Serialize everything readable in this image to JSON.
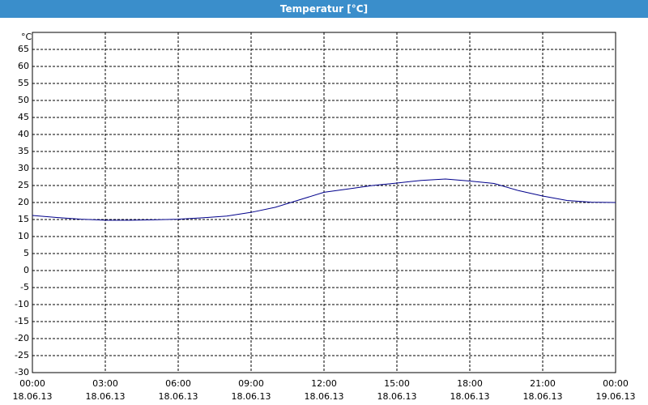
{
  "chart_data": {
    "type": "line",
    "title": "Temperatur [°C]",
    "y_unit": "°C",
    "x": [
      0,
      1,
      2,
      3,
      4,
      5,
      6,
      7,
      8,
      9,
      10,
      11,
      12,
      13,
      14,
      15,
      16,
      17,
      18,
      19,
      20,
      21,
      22,
      23,
      24
    ],
    "series": [
      {
        "color": "#00008b",
        "values": [
          16.2,
          15.6,
          15.1,
          14.8,
          14.8,
          14.9,
          15.1,
          15.5,
          16.0,
          17.1,
          18.6,
          20.8,
          23.0,
          24.0,
          25.0,
          25.7,
          26.5,
          26.9,
          26.3,
          25.6,
          23.5,
          21.9,
          20.6,
          20.1,
          20.0
        ]
      }
    ],
    "xlim": [
      0,
      24
    ],
    "xticks": [
      {
        "value": 0,
        "label": "00:00",
        "date": "18.06.13"
      },
      {
        "value": 3,
        "label": "03:00",
        "date": "18.06.13"
      },
      {
        "value": 6,
        "label": "06:00",
        "date": "18.06.13"
      },
      {
        "value": 9,
        "label": "09:00",
        "date": "18.06.13"
      },
      {
        "value": 12,
        "label": "12:00",
        "date": "18.06.13"
      },
      {
        "value": 15,
        "label": "15:00",
        "date": "18.06.13"
      },
      {
        "value": 18,
        "label": "18:00",
        "date": "18.06.13"
      },
      {
        "value": 21,
        "label": "21:00",
        "date": "18.06.13"
      },
      {
        "value": 24,
        "label": "00:00",
        "date": "19.06.13"
      }
    ],
    "ylim": [
      -30,
      70
    ],
    "yticks": [
      -30,
      -25,
      -20,
      -15,
      -10,
      -5,
      0,
      5,
      10,
      15,
      20,
      25,
      30,
      35,
      40,
      45,
      50,
      55,
      60,
      65
    ],
    "grid": true
  }
}
